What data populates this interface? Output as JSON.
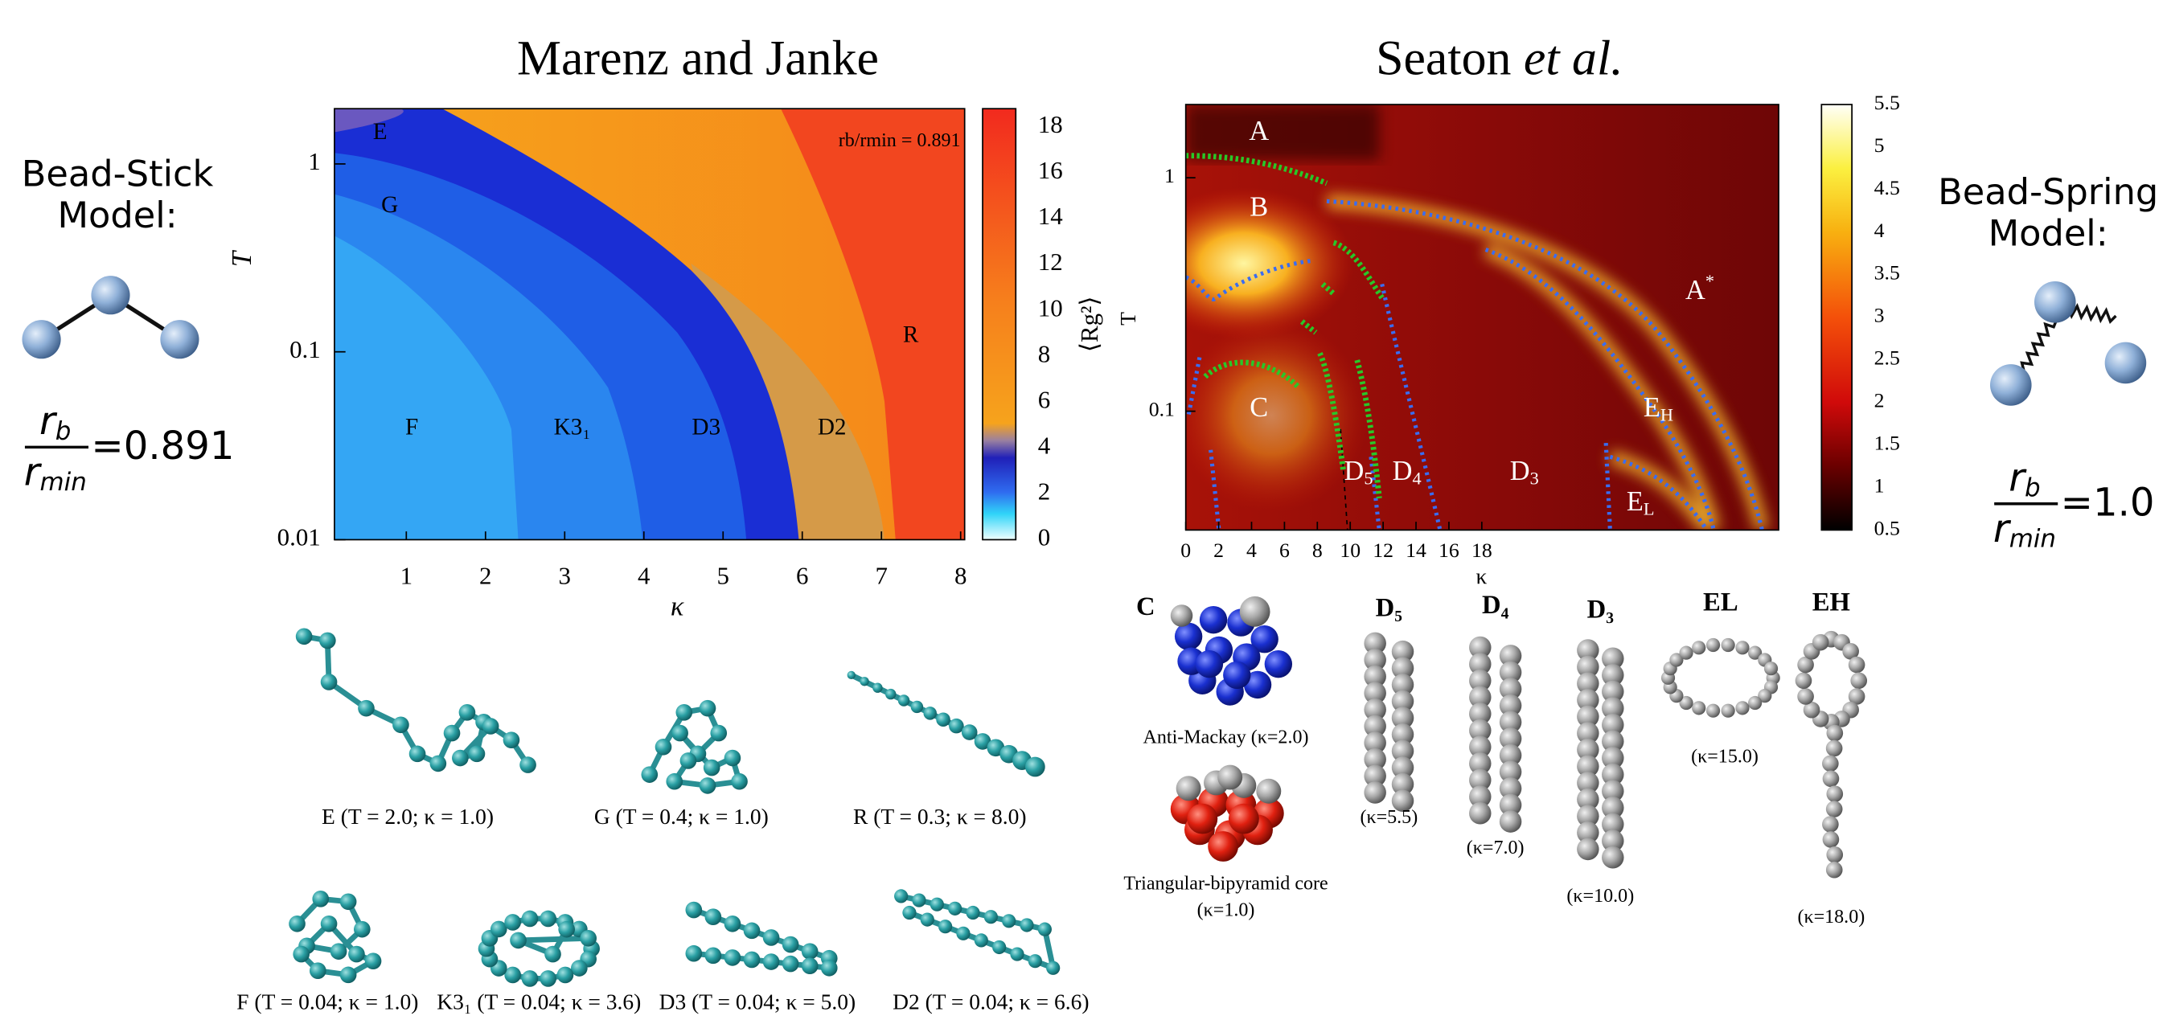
{
  "left_model": {
    "title_line1": "Bead-Stick",
    "title_line2": "Model:",
    "numerator": "r",
    "numerator_sub": "b",
    "denominator": "r",
    "denominator_sub": "min",
    "value": "=0.891"
  },
  "right_model": {
    "title_line1": "Bead-Spring",
    "title_line2": "Model:",
    "numerator": "r",
    "numerator_sub": "b",
    "denominator": "r",
    "denominator_sub": "min",
    "value": "=1.0"
  },
  "left_panel": {
    "title": "Marenz and Janke",
    "x_label": "κ",
    "y_label": "T",
    "colorbar_label": "⟨Rg²⟩",
    "x_ticks": [
      "1",
      "2",
      "3",
      "4",
      "5",
      "6",
      "7",
      "8"
    ],
    "y_ticks": [
      "1",
      "0.1",
      "0.01"
    ],
    "colorbar_ticks": [
      "0",
      "2",
      "4",
      "6",
      "8",
      "10",
      "12",
      "14",
      "16",
      "18"
    ],
    "inset": "rb/rmin = 0.891",
    "regions": [
      "E",
      "G",
      "F",
      "K3₁",
      "D3",
      "D2",
      "R"
    ],
    "snapshots": [
      "E (T = 2.0; κ = 1.0)",
      "G (T = 0.4; κ = 1.0)",
      "R (T = 0.3; κ = 8.0)",
      "F (T = 0.04; κ = 1.0)",
      "K3₁ (T = 0.04; κ = 3.6)",
      "D3 (T = 0.04; κ = 5.0)",
      "D2 (T = 0.04; κ = 6.6)"
    ]
  },
  "right_panel": {
    "title": "Seaton ",
    "title_italic": "et al.",
    "x_label": "κ",
    "y_label": "T",
    "x_ticks": [
      "0",
      "2",
      "4",
      "6",
      "8",
      "10",
      "12",
      "14",
      "16",
      "18"
    ],
    "y_ticks": [
      "1",
      "0.1"
    ],
    "colorbar_ticks": [
      "0.5",
      "1",
      "1.5",
      "2",
      "2.5",
      "3",
      "3.5",
      "4",
      "4.5",
      "5",
      "5.5"
    ],
    "regions": [
      {
        "main": "A",
        "sub": ""
      },
      {
        "main": "B",
        "sub": ""
      },
      {
        "main": "C",
        "sub": ""
      },
      {
        "main": "A",
        "sub": "*"
      },
      {
        "main": "E",
        "sub": "H"
      },
      {
        "main": "E",
        "sub": "L"
      },
      {
        "main": "D",
        "sub": "5"
      },
      {
        "main": "D",
        "sub": "4"
      },
      {
        "main": "D",
        "sub": "3"
      }
    ],
    "snapshot_labels": [
      "C",
      "D₅",
      "D₄",
      "D₃",
      "EL",
      "EH"
    ],
    "snapshot_captions": [
      "Anti-Mackay (κ=2.0)",
      "Triangular-bipyramid core",
      "(κ=1.0)",
      "(κ=5.5)",
      "(κ=7.0)",
      "(κ=10.0)",
      "(κ=15.0)",
      "(κ=18.0)"
    ]
  }
}
